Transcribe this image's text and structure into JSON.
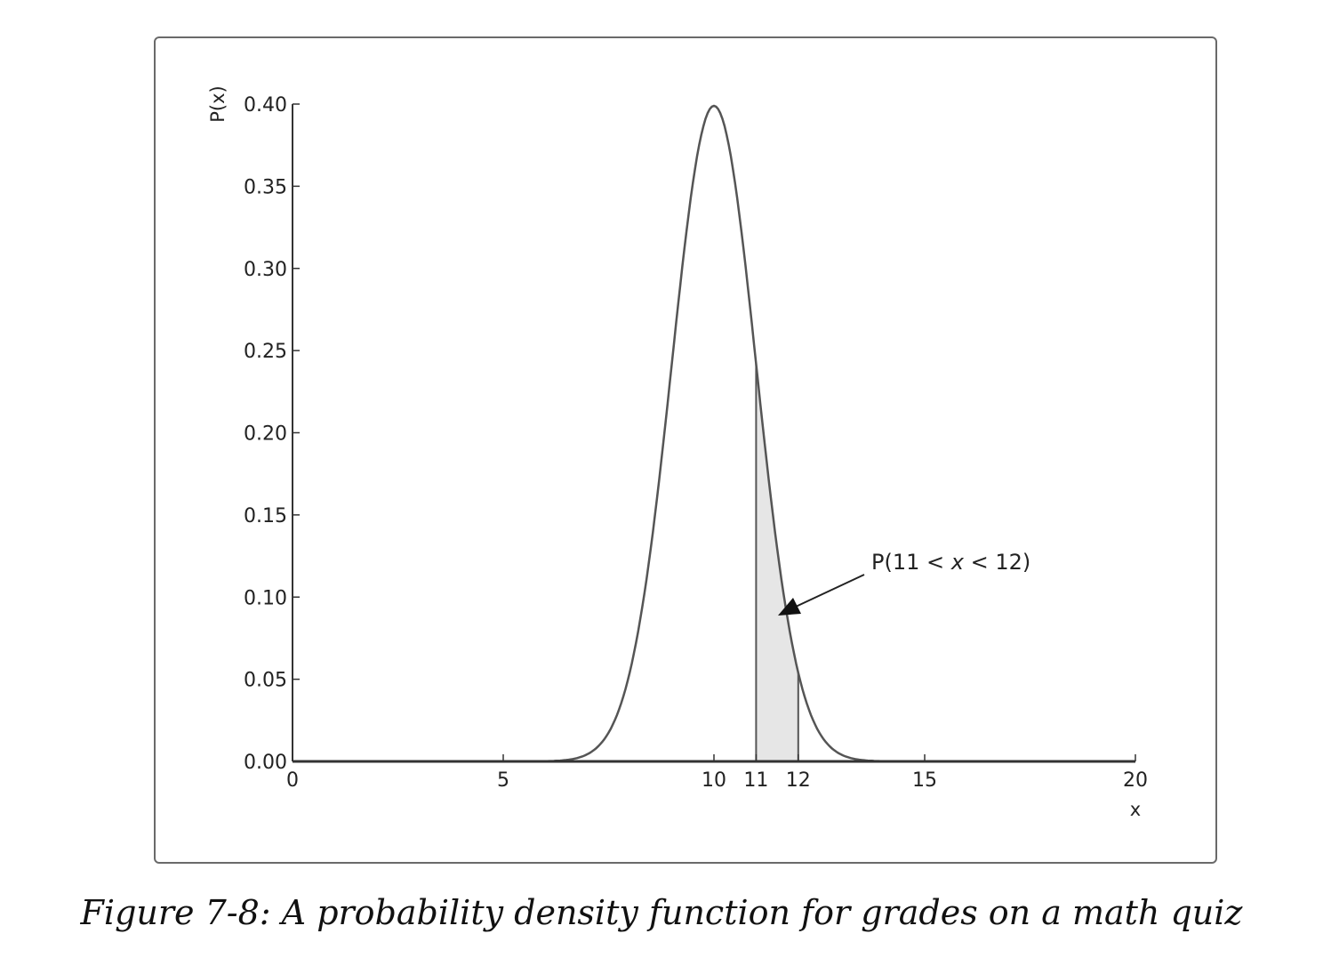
{
  "caption": "Figure 7-8: A probability density function for grades on a math quiz",
  "chart_data": {
    "type": "line",
    "xlabel": "x",
    "ylabel": "P(x)",
    "xlim": [
      0,
      20
    ],
    "ylim": [
      0,
      0.4
    ],
    "x_ticks": [
      0,
      5,
      10,
      11,
      12,
      15,
      20
    ],
    "y_ticks": [
      0.0,
      0.05,
      0.1,
      0.15,
      0.2,
      0.25,
      0.3,
      0.35,
      0.4
    ],
    "y_tick_labels": [
      "0.00",
      "0.05",
      "0.10",
      "0.15",
      "0.20",
      "0.25",
      "0.30",
      "0.35",
      "0.40"
    ],
    "series": [
      {
        "distribution": "normal",
        "mean": 10,
        "std": 1,
        "x": [
          5,
          5.5,
          6,
          6.5,
          7,
          7.5,
          8,
          8.5,
          9,
          9.5,
          10,
          10.5,
          11,
          11.5,
          12,
          12.5,
          13,
          13.5,
          14,
          14.5,
          15
        ],
        "values": [
          0.0,
          0.0,
          0.0001,
          0.0009,
          0.0044,
          0.0175,
          0.054,
          0.1295,
          0.242,
          0.3521,
          0.3989,
          0.3521,
          0.242,
          0.1295,
          0.054,
          0.0175,
          0.0044,
          0.0009,
          0.0001,
          0.0,
          0.0
        ]
      }
    ],
    "shaded_region": {
      "x_from": 11,
      "x_to": 12
    },
    "annotation": {
      "text_prefix": "P(11 < ",
      "text_var": "x",
      "text_suffix": " < 12)"
    },
    "grid": false,
    "colors": {
      "line": "#555555",
      "fill": "#e6e6e6",
      "axis": "#333333"
    }
  }
}
